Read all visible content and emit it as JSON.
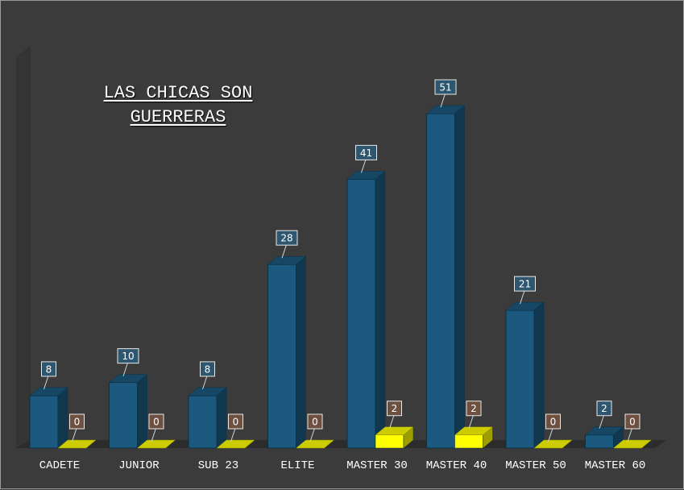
{
  "chart_data": {
    "type": "bar",
    "title": "LAS CHICAS SON GUERRERAS",
    "categories": [
      "CADETE",
      "JUNIOR",
      "SUB 23",
      "ELITE",
      "MASTER 30",
      "MASTER 40",
      "MASTER 50",
      "MASTER 60"
    ],
    "series": [
      {
        "values": [
          8,
          10,
          8,
          28,
          41,
          51,
          21,
          2
        ],
        "color": "#1b5a7e"
      },
      {
        "values": [
          0,
          0,
          0,
          0,
          2,
          2,
          0,
          0
        ],
        "color": "#ffff00"
      }
    ],
    "ylim": [
      0,
      51
    ],
    "grid": false,
    "legend": "none",
    "style": "3d-columns",
    "background": "#3b3b3b"
  }
}
